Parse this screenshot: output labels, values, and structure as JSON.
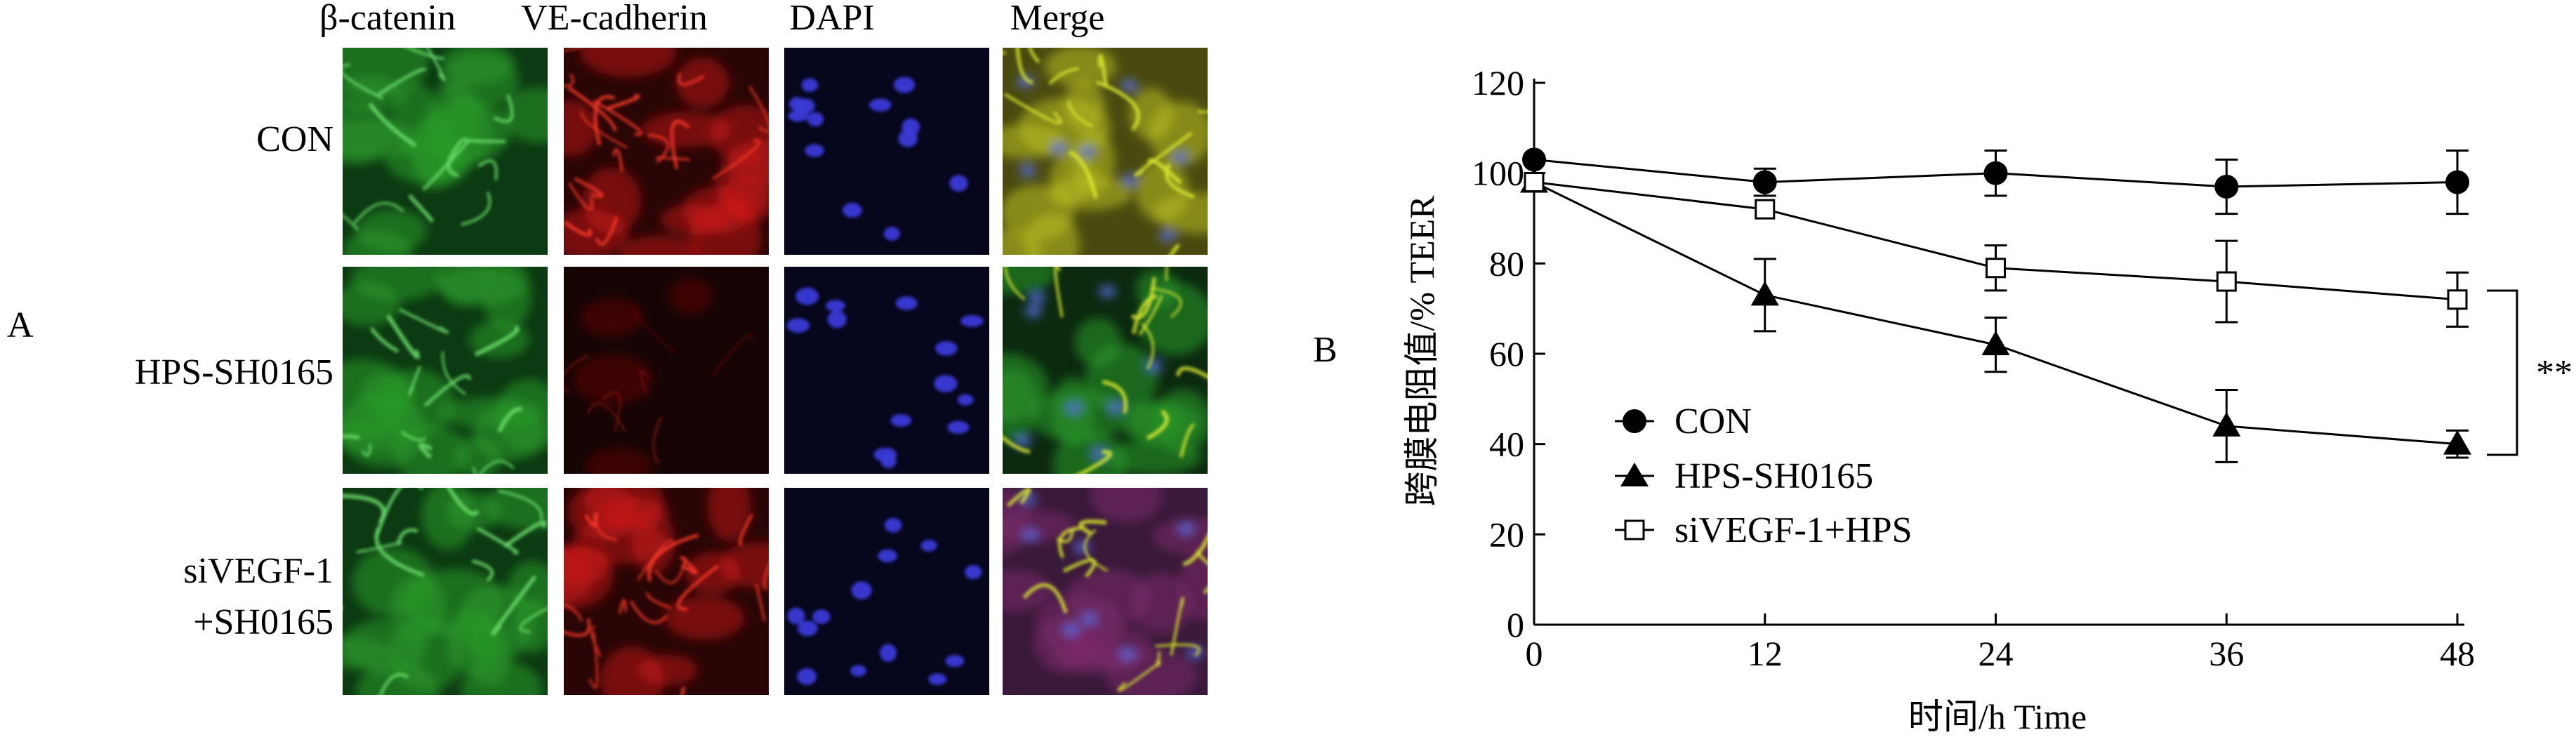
{
  "figure": {
    "panel_a": {
      "label": "A",
      "column_headers": [
        "β-catenin",
        "VE-cadherin",
        "DAPI",
        "Merge"
      ],
      "row_labels": [
        {
          "lines": [
            "CON"
          ]
        },
        {
          "lines": [
            "HPS-SH0165"
          ]
        },
        {
          "lines": [
            "siVEGF-1",
            "+SH0165"
          ]
        }
      ],
      "channel_colors": {
        "beta_catenin": "#2a9a2a",
        "ve_cadherin": "#d81818",
        "dapi_bg": "#06061c",
        "dapi_nuclei": "#3a3ad8",
        "merge": "#8fae28"
      }
    },
    "panel_b": {
      "label": "B",
      "significance": "**"
    }
  },
  "chart_data": {
    "type": "line",
    "xlabel": "时间/h Time",
    "ylabel": "跨膜电阻值/%  TEER",
    "x": [
      0,
      12,
      24,
      36,
      48
    ],
    "xticks": [
      0,
      12,
      24,
      36,
      48
    ],
    "yticks": [
      0,
      20,
      40,
      60,
      80,
      100,
      120
    ],
    "xlim": [
      0,
      48
    ],
    "ylim": [
      0,
      120
    ],
    "grid": false,
    "legend_position": "lower-left",
    "series": [
      {
        "name": "CON",
        "marker": "filled-circle",
        "values": [
          103,
          98,
          100,
          97,
          98
        ],
        "errors": [
          0,
          3,
          5,
          6,
          7
        ]
      },
      {
        "name": "HPS-SH0165",
        "marker": "filled-triangle",
        "values": [
          98,
          73,
          62,
          44,
          40
        ],
        "errors": [
          0,
          8,
          6,
          8,
          3
        ]
      },
      {
        "name": "siVEGF-1+HPS",
        "marker": "open-square",
        "values": [
          98,
          92,
          79,
          76,
          72
        ],
        "errors": [
          0,
          0,
          5,
          9,
          6
        ]
      }
    ]
  }
}
